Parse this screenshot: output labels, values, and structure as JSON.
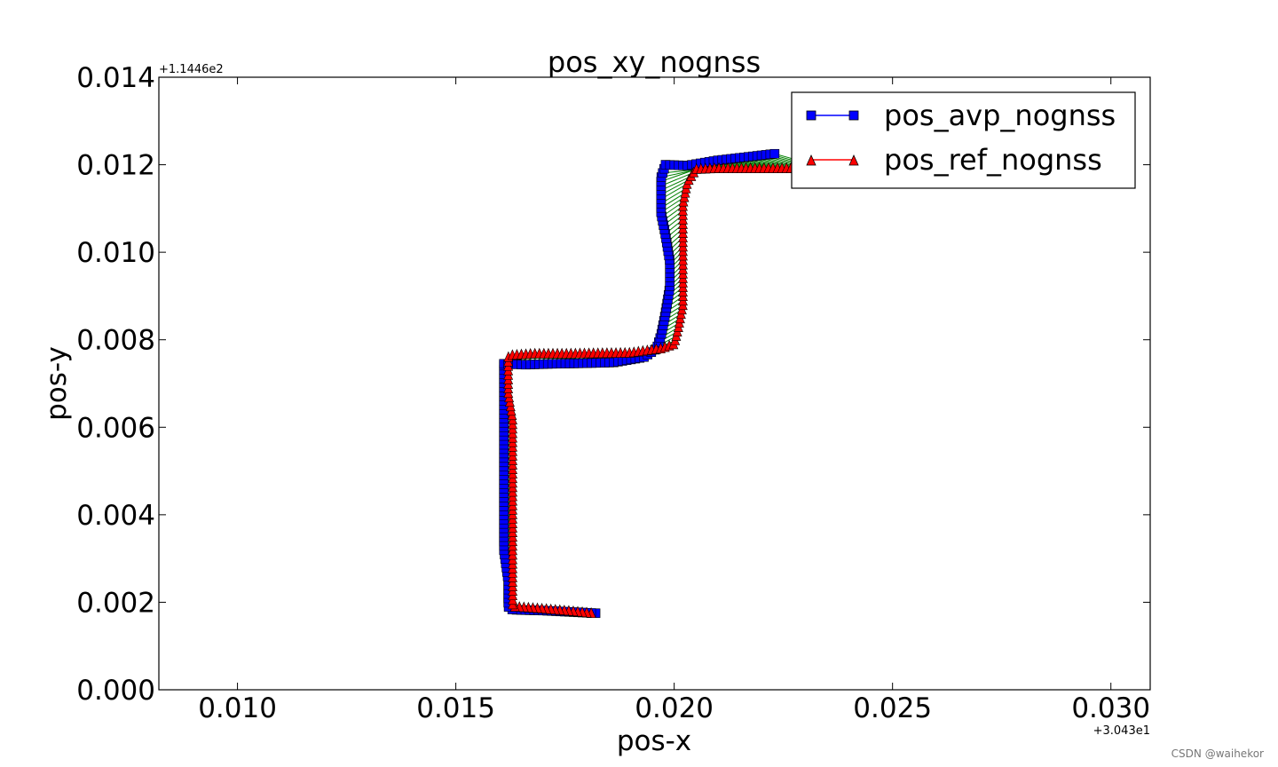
{
  "chart_data": {
    "type": "line",
    "title": "pos_xy_nognss",
    "xlabel": "pos-x",
    "ylabel": "pos-y",
    "x_offset_label": "+3.043e1",
    "y_offset_label": "+1.1446e2",
    "xlim": [
      0.0082,
      0.0309
    ],
    "ylim": [
      0.0,
      0.014
    ],
    "xticks": [
      0.01,
      0.015,
      0.02,
      0.025,
      0.03
    ],
    "xtick_labels": [
      "0.010",
      "0.015",
      "0.020",
      "0.025",
      "0.030"
    ],
    "yticks": [
      0.0,
      0.002,
      0.004,
      0.006,
      0.008,
      0.01,
      0.012,
      0.014
    ],
    "ytick_labels": [
      "0.000",
      "0.002",
      "0.004",
      "0.006",
      "0.008",
      "0.010",
      "0.012",
      "0.014"
    ],
    "legend_position": "top-right",
    "grid": false,
    "series": [
      {
        "name": "pos_avp_nognss",
        "color": "#0000ff",
        "marker": "square",
        "x": [
          0.0182,
          0.0176,
          0.017,
          0.0166,
          0.0163,
          0.0162,
          0.0162,
          0.0161,
          0.0161,
          0.0161,
          0.0161,
          0.0161,
          0.0161,
          0.0161,
          0.0161,
          0.0161,
          0.0161,
          0.0166,
          0.0172,
          0.0178,
          0.0186,
          0.0193,
          0.0196,
          0.0197,
          0.0198,
          0.0199,
          0.0199,
          0.0198,
          0.0197,
          0.0197,
          0.0197,
          0.0198,
          0.0203,
          0.021,
          0.0217,
          0.0223
        ],
        "y": [
          0.00175,
          0.00178,
          0.00181,
          0.00182,
          0.00183,
          0.0019,
          0.0025,
          0.0032,
          0.004,
          0.0048,
          0.0055,
          0.0062,
          0.0068,
          0.0072,
          0.00745,
          0.00748,
          0.00745,
          0.00743,
          0.00745,
          0.00746,
          0.00748,
          0.0076,
          0.0078,
          0.0081,
          0.0086,
          0.0092,
          0.0098,
          0.0104,
          0.0109,
          0.0113,
          0.0117,
          0.012,
          0.01198,
          0.0121,
          0.01218,
          0.01225
        ]
      },
      {
        "name": "pos_ref_nognss",
        "color": "#ff0000",
        "marker": "triangle",
        "x": [
          0.0181,
          0.0176,
          0.017,
          0.0166,
          0.0163,
          0.0163,
          0.0163,
          0.0163,
          0.0163,
          0.0163,
          0.0163,
          0.0162,
          0.0162,
          0.0162,
          0.0162,
          0.0163,
          0.0168,
          0.0175,
          0.0182,
          0.019,
          0.0197,
          0.02,
          0.0201,
          0.0202,
          0.0202,
          0.0202,
          0.0202,
          0.0202,
          0.0203,
          0.0205,
          0.021,
          0.0218,
          0.0226,
          0.0235
        ],
        "y": [
          0.00175,
          0.0018,
          0.00185,
          0.00188,
          0.0019,
          0.0025,
          0.0032,
          0.004,
          0.0048,
          0.0055,
          0.0062,
          0.0068,
          0.0072,
          0.0075,
          0.0076,
          0.00765,
          0.00768,
          0.00768,
          0.00769,
          0.0077,
          0.0078,
          0.0079,
          0.0083,
          0.0088,
          0.0093,
          0.0099,
          0.0105,
          0.0111,
          0.0116,
          0.0119,
          0.01192,
          0.01192,
          0.01192,
          0.01192
        ]
      }
    ],
    "connector_color": "#007f00"
  }
}
